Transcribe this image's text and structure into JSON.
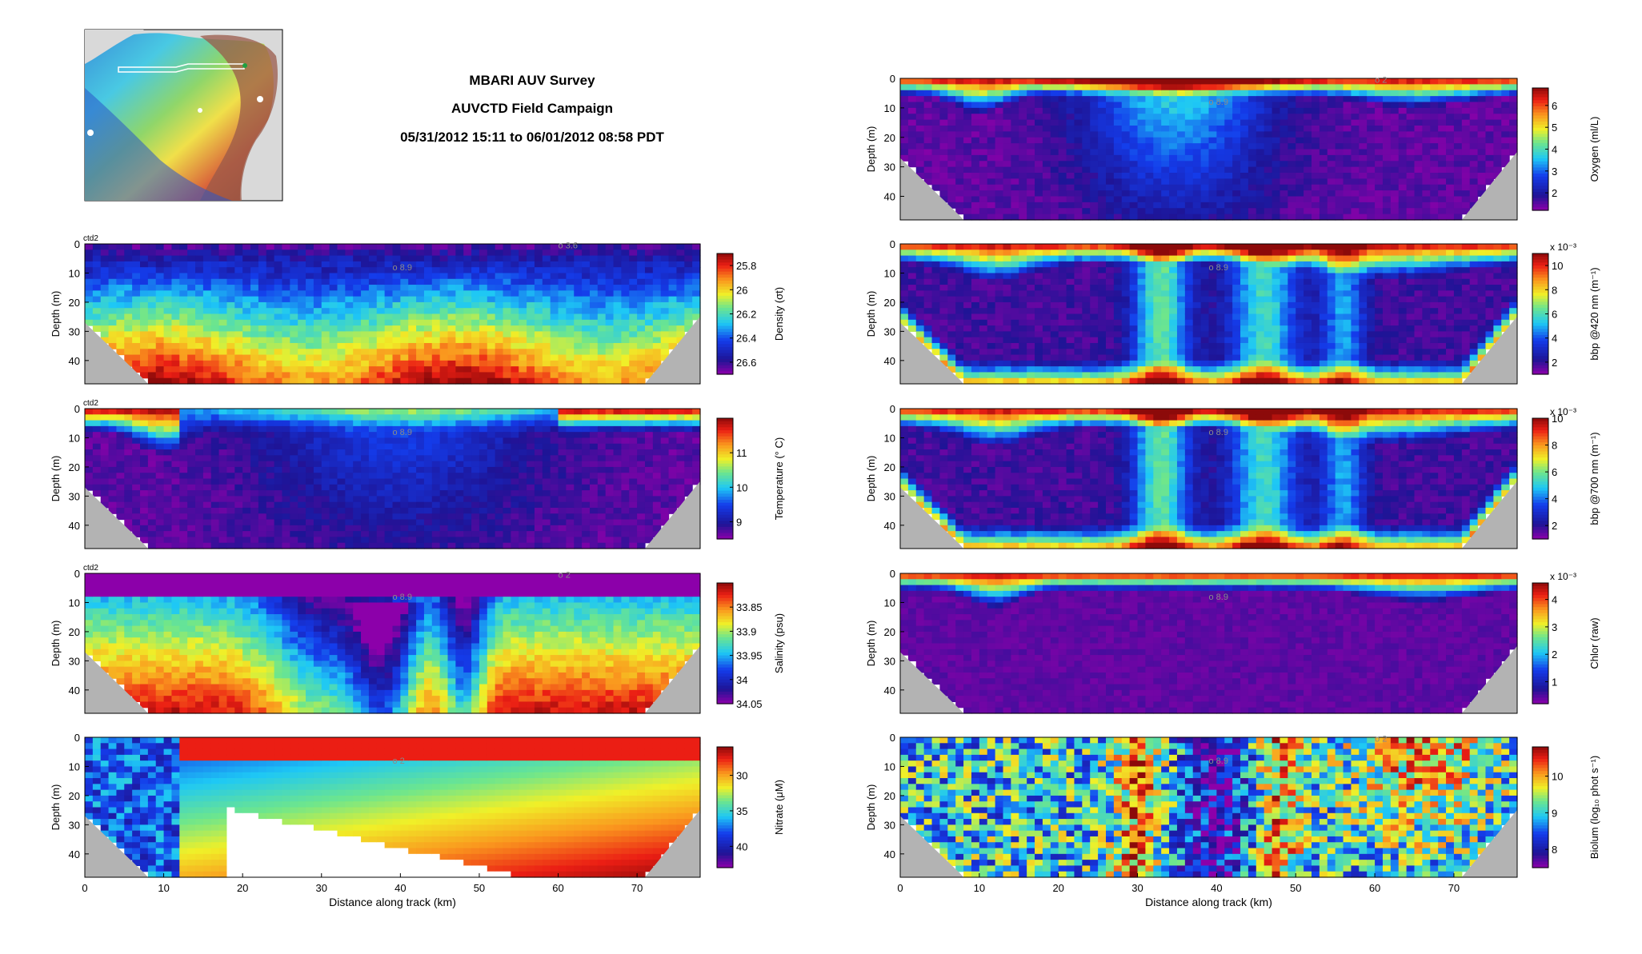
{
  "header": {
    "title": "MBARI AUV Survey",
    "subtitle": "AUVCTD Field Campaign",
    "date_range": "05/31/2012 15:11 to 06/01/2012 08:58 PDT"
  },
  "chart_data": [
    {
      "type": "heatmap",
      "id": "density",
      "title": "",
      "tag": "ctd2",
      "xlabel": "",
      "ylabel": "Depth (m)",
      "xlim": [
        0,
        78
      ],
      "ylim": [
        0,
        48
      ],
      "yticks": [
        0,
        10,
        20,
        30,
        40
      ],
      "xticks": [],
      "colorbar": {
        "label": "Density (σt)",
        "ticks": [
          25.8,
          26,
          26.2,
          26.4,
          26.6
        ],
        "range": [
          25.7,
          26.7
        ],
        "reversed": true
      },
      "annotations": [
        "o 8.9",
        "o 3.6"
      ]
    },
    {
      "type": "heatmap",
      "id": "temperature",
      "title": "",
      "tag": "ctd2",
      "xlabel": "",
      "ylabel": "Depth (m)",
      "xlim": [
        0,
        78
      ],
      "ylim": [
        0,
        48
      ],
      "yticks": [
        0,
        10,
        20,
        30,
        40
      ],
      "xticks": [],
      "colorbar": {
        "label": "Temperature (° C)",
        "ticks": [
          9,
          10,
          11
        ],
        "range": [
          8.5,
          12
        ],
        "reversed": false
      },
      "annotations": [
        "o 8.9"
      ]
    },
    {
      "type": "heatmap",
      "id": "salinity",
      "title": "",
      "tag": "ctd2",
      "xlabel": "",
      "ylabel": "Depth (m)",
      "xlim": [
        0,
        78
      ],
      "ylim": [
        0,
        48
      ],
      "yticks": [
        0,
        10,
        20,
        30,
        40
      ],
      "xticks": [],
      "colorbar": {
        "label": "Salinity (psu)",
        "ticks": [
          33.85,
          33.9,
          33.95,
          34,
          34.05
        ],
        "range": [
          33.8,
          34.05
        ],
        "reversed": true
      },
      "annotations": [
        "o 8.9",
        "o 2"
      ]
    },
    {
      "type": "heatmap",
      "id": "nitrate",
      "title": "",
      "tag": "",
      "xlabel": "Distance along track (km)",
      "ylabel": "Depth (m)",
      "xlim": [
        0,
        78
      ],
      "ylim": [
        0,
        48
      ],
      "yticks": [
        0,
        10,
        20,
        30,
        40
      ],
      "xticks": [
        0,
        10,
        20,
        30,
        40,
        50,
        60,
        70
      ],
      "colorbar": {
        "label": "Nitrate (μM)",
        "ticks": [
          30,
          35,
          40
        ],
        "range": [
          26,
          43
        ],
        "reversed": true
      },
      "annotations": [
        "o 2"
      ]
    },
    {
      "type": "heatmap",
      "id": "oxygen",
      "title": "",
      "tag": "",
      "xlabel": "",
      "ylabel": "Depth (m)",
      "xlim": [
        0,
        78
      ],
      "ylim": [
        0,
        48
      ],
      "yticks": [
        0,
        10,
        20,
        30,
        40
      ],
      "xticks": [],
      "colorbar": {
        "label": "Oxygen (ml/L)",
        "ticks": [
          2,
          3,
          4,
          5,
          6
        ],
        "range": [
          1.2,
          6.8
        ],
        "reversed": false
      },
      "annotations": [
        "o 8.9",
        "o 2"
      ]
    },
    {
      "type": "heatmap",
      "id": "bbp420",
      "title": "",
      "tag": "",
      "xlabel": "",
      "ylabel": "Depth (m)",
      "xlim": [
        0,
        78
      ],
      "ylim": [
        0,
        48
      ],
      "yticks": [
        0,
        10,
        20,
        30,
        40
      ],
      "xticks": [],
      "colorbar": {
        "label": "bbp @420 nm (m⁻¹)",
        "ticks": [
          2,
          4,
          6,
          8,
          10
        ],
        "range": [
          1,
          11
        ],
        "reversed": false,
        "exponent": "x 10⁻³"
      },
      "annotations": [
        "o 8.9"
      ]
    },
    {
      "type": "heatmap",
      "id": "bbp700",
      "title": "",
      "tag": "",
      "xlabel": "",
      "ylabel": "Depth (m)",
      "xlim": [
        0,
        78
      ],
      "ylim": [
        0,
        48
      ],
      "yticks": [
        0,
        10,
        20,
        30,
        40
      ],
      "xticks": [],
      "colorbar": {
        "label": "bbp @700 nm (m⁻¹)",
        "ticks": [
          2,
          4,
          6,
          8,
          10
        ],
        "range": [
          1,
          10
        ],
        "reversed": false,
        "exponent": "x 10⁻³"
      },
      "annotations": [
        "o 8.9"
      ]
    },
    {
      "type": "heatmap",
      "id": "chlor",
      "title": "",
      "tag": "",
      "xlabel": "",
      "ylabel": "Depth (m)",
      "xlim": [
        0,
        78
      ],
      "ylim": [
        0,
        48
      ],
      "yticks": [
        0,
        10,
        20,
        30,
        40
      ],
      "xticks": [],
      "colorbar": {
        "label": "Chlor (raw)",
        "ticks": [
          1,
          2,
          3,
          4
        ],
        "range": [
          0.2,
          4.6
        ],
        "reversed": false,
        "exponent": "x 10⁻³"
      },
      "annotations": [
        "o 8.9"
      ]
    },
    {
      "type": "heatmap",
      "id": "biolum",
      "title": "",
      "tag": "",
      "xlabel": "Distance along track (km)",
      "ylabel": "Depth (m)",
      "xlim": [
        0,
        78
      ],
      "ylim": [
        0,
        48
      ],
      "yticks": [
        0,
        10,
        20,
        30,
        40
      ],
      "xticks": [
        0,
        10,
        20,
        30,
        40,
        50,
        60,
        70
      ],
      "colorbar": {
        "label": "Biolum (log₁₀ phot s⁻¹)",
        "ticks": [
          8,
          9,
          10
        ],
        "range": [
          7.5,
          10.8
        ],
        "reversed": false
      },
      "annotations": [
        "o 8.9",
        "o 2"
      ]
    }
  ]
}
